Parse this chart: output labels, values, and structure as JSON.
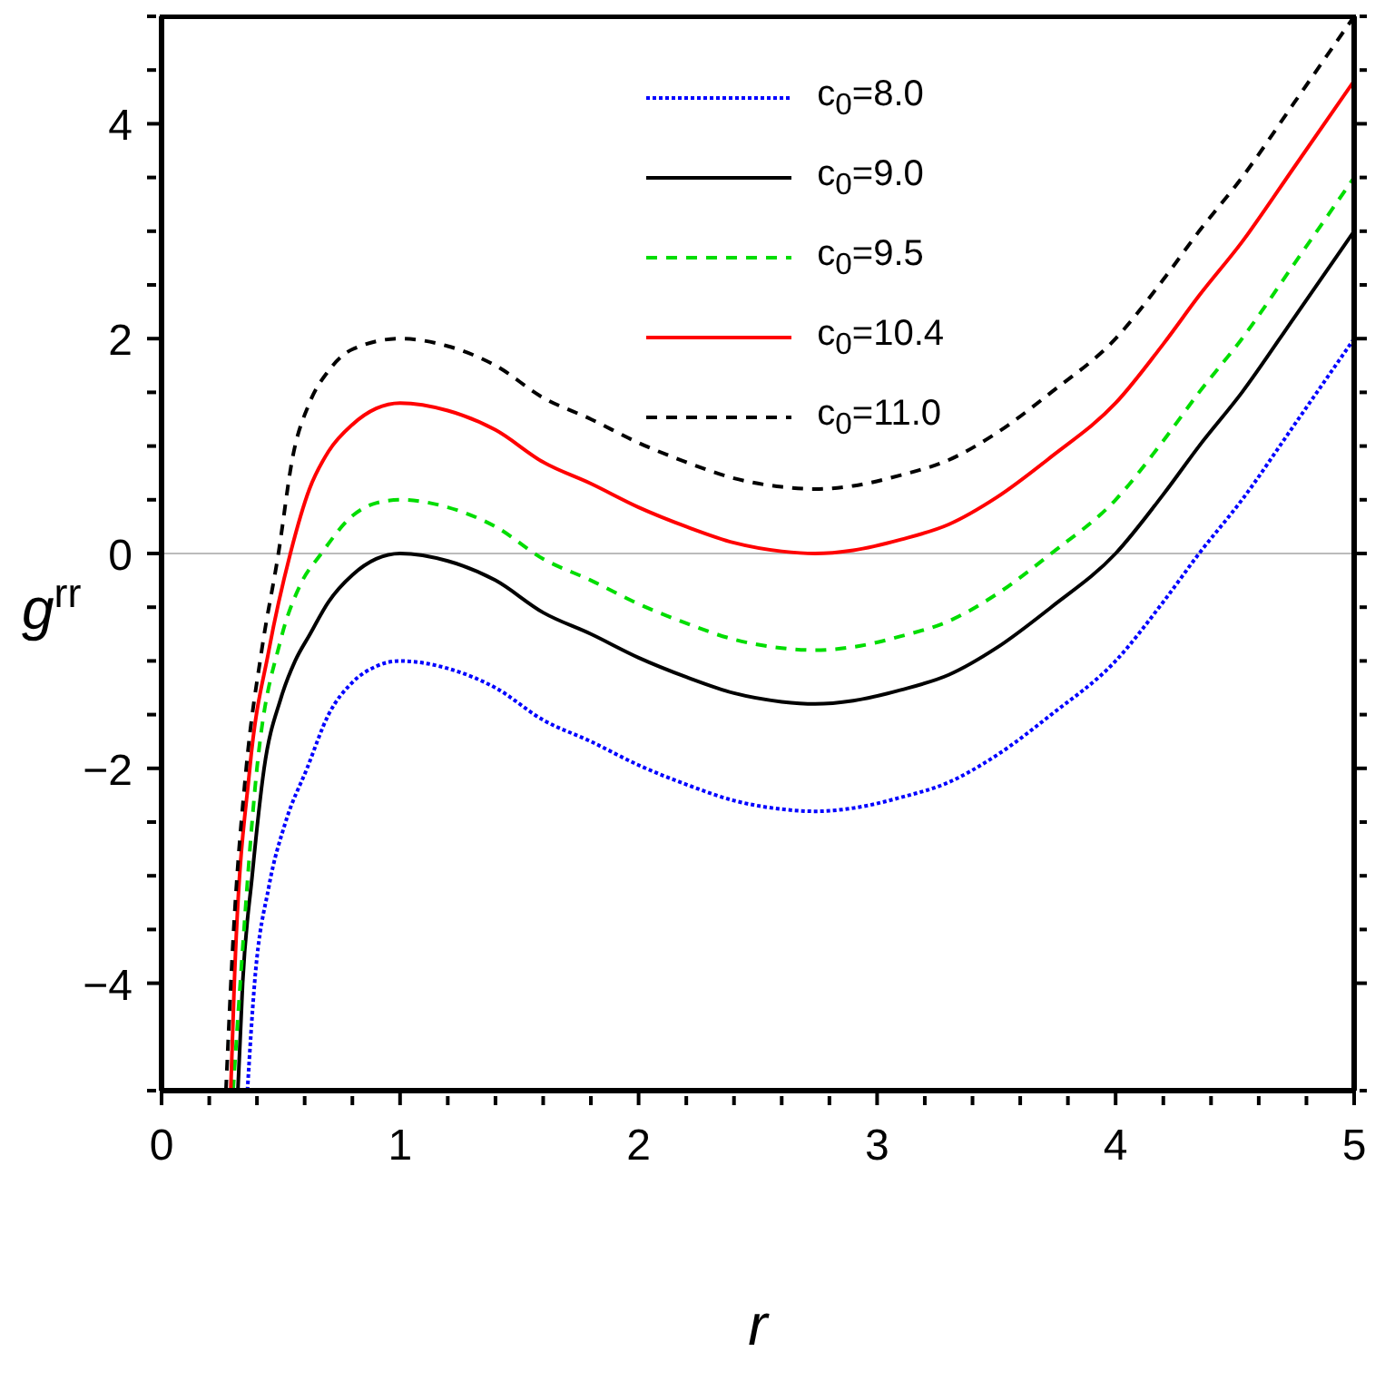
{
  "chart_data": {
    "type": "line",
    "xlabel": "r",
    "ylabel": "g$^{rr}$",
    "xlim": [
      0,
      5
    ],
    "ylim": [
      -5,
      5
    ],
    "xticks": [
      0,
      {
        "value": 0.2,
        "label": null
      },
      {
        "value": 0.4,
        "label": null
      },
      {
        "value": 0.6,
        "label": null
      },
      {
        "value": 0.8,
        "label": null
      },
      1,
      {
        "value": 1.2,
        "label": null
      },
      {
        "value": 1.4,
        "label": null
      },
      {
        "value": 1.6,
        "label": null
      },
      {
        "value": 1.8,
        "label": null
      },
      2,
      {
        "value": 2.2,
        "label": null
      },
      {
        "value": 2.4,
        "label": null
      },
      {
        "value": 2.6,
        "label": null
      },
      {
        "value": 2.8,
        "label": null
      },
      3,
      {
        "value": 3.2,
        "label": null
      },
      {
        "value": 3.4,
        "label": null
      },
      {
        "value": 3.6,
        "label": null
      },
      {
        "value": 3.8,
        "label": null
      },
      4,
      {
        "value": 4.2,
        "label": null
      },
      {
        "value": 4.4,
        "label": null
      },
      {
        "value": 4.6,
        "label": null
      },
      {
        "value": 4.8,
        "label": null
      },
      5
    ],
    "yticks": [
      {
        "value": -5,
        "label": null
      },
      -4,
      {
        "value": -3.5,
        "label": null
      },
      {
        "value": -3,
        "label": null
      },
      {
        "value": -2.5,
        "label": null
      },
      -2,
      {
        "value": -1.5,
        "label": null
      },
      {
        "value": -1,
        "label": null
      },
      {
        "value": -0.5,
        "label": null
      },
      0,
      {
        "value": 0.5,
        "label": null
      },
      {
        "value": 1,
        "label": null
      },
      {
        "value": 1.5,
        "label": null
      },
      2,
      {
        "value": 2.5,
        "label": null
      },
      {
        "value": 3,
        "label": null
      },
      {
        "value": 3.5,
        "label": null
      },
      4,
      {
        "value": 4.5,
        "label": null
      },
      {
        "value": 5,
        "label": null
      }
    ],
    "grid": false,
    "legend": "top right",
    "marker": "none",
    "ref_lines": [
      {
        "axis": "y",
        "value": 0,
        "color": "#bbbbbb"
      }
    ],
    "series": [
      {
        "name": "c$_{0}$=8.0",
        "color": "#0000ff",
        "line_style": "dotted",
        "x": [
          0.36,
          0.39,
          0.45,
          0.52,
          0.61,
          0.7,
          0.8,
          0.9,
          1.0,
          1.2,
          1.4,
          1.6,
          1.8,
          2.0,
          2.2,
          2.4,
          2.6,
          2.74,
          2.9,
          3.1,
          3.3,
          3.5,
          3.73,
          4.0,
          4.2,
          4.35,
          4.53,
          4.75,
          5.0
        ],
        "values": [
          -5,
          -4,
          -3.1,
          -2.5,
          -2,
          -1.5,
          -1.2,
          -1.05,
          -1,
          -1.07,
          -1.25,
          -1.55,
          -1.75,
          -1.97,
          -2.15,
          -2.3,
          -2.38,
          -2.4,
          -2.37,
          -2.27,
          -2.13,
          -1.88,
          -1.5,
          -1,
          -0.45,
          0,
          0.5,
          1.2,
          2
        ]
      },
      {
        "name": "c$_{0}$=9.0",
        "color": "#000000",
        "line_style": "solid",
        "x": [
          0.32,
          0.34,
          0.38,
          0.43,
          0.5,
          0.56,
          0.62,
          0.7,
          0.8,
          0.9,
          1.0,
          1.2,
          1.4,
          1.6,
          1.8,
          2.0,
          2.2,
          2.4,
          2.6,
          2.74,
          2.9,
          3.1,
          3.3,
          3.5,
          3.73,
          4.0,
          4.2,
          4.35,
          4.53,
          4.75,
          5.0
        ],
        "values": [
          -5,
          -4,
          -3,
          -2,
          -1.35,
          -1,
          -0.76,
          -0.45,
          -0.2,
          -0.05,
          0,
          -0.07,
          -0.25,
          -0.55,
          -0.75,
          -0.97,
          -1.15,
          -1.3,
          -1.38,
          -1.4,
          -1.37,
          -1.27,
          -1.13,
          -0.88,
          -0.5,
          0,
          0.55,
          1,
          1.5,
          2.2,
          3
        ]
      },
      {
        "name": "c$_{0}$=9.5",
        "color": "#00dd00",
        "line_style": "dashed",
        "x": [
          0.3,
          0.33,
          0.4,
          0.5,
          0.58,
          0.67,
          0.8,
          0.9,
          1.0,
          1.2,
          1.4,
          1.6,
          1.8,
          2.0,
          2.2,
          2.4,
          2.6,
          2.74,
          2.9,
          3.1,
          3.3,
          3.5,
          3.73,
          4.0,
          4.2,
          4.35,
          4.53,
          4.75,
          5.0
        ],
        "values": [
          -5,
          -4,
          -2,
          -0.8,
          -0.3,
          0,
          0.35,
          0.47,
          0.5,
          0.43,
          0.25,
          -0.05,
          -0.25,
          -0.47,
          -0.65,
          -0.8,
          -0.88,
          -0.9,
          -0.87,
          -0.77,
          -0.63,
          -0.38,
          0,
          0.5,
          1.05,
          1.5,
          2,
          2.7,
          3.5
        ]
      },
      {
        "name": "c$_{0}$=10.4",
        "color": "#ff0000",
        "line_style": "solid",
        "x": [
          0.29,
          0.305,
          0.37,
          0.45,
          0.54,
          0.62,
          0.7,
          0.8,
          0.9,
          1.0,
          1.2,
          1.4,
          1.6,
          1.8,
          2.0,
          2.2,
          2.4,
          2.6,
          2.74,
          2.9,
          3.1,
          3.3,
          3.5,
          3.73,
          4.0,
          4.2,
          4.35,
          4.53,
          4.75,
          5.0
        ],
        "values": [
          -5,
          -4,
          -2,
          -0.9,
          0,
          0.6,
          0.95,
          1.2,
          1.35,
          1.4,
          1.33,
          1.15,
          0.85,
          0.65,
          0.43,
          0.25,
          0.1,
          0.02,
          0,
          0.03,
          0.13,
          0.27,
          0.52,
          0.9,
          1.4,
          1.95,
          2.4,
          2.9,
          3.6,
          4.4
        ]
      },
      {
        "name": "c$_{0}$=11.0",
        "color": "#000000",
        "line_style": "dashed",
        "x": [
          0.27,
          0.3,
          0.355,
          0.42,
          0.49,
          0.55,
          0.62,
          0.7,
          0.8,
          1.0,
          1.2,
          1.4,
          1.6,
          1.8,
          2.0,
          2.2,
          2.4,
          2.6,
          2.74,
          2.9,
          3.1,
          3.3,
          3.5,
          3.73,
          4.0,
          4.2,
          4.35,
          4.53,
          4.75,
          5.0
        ],
        "values": [
          -5,
          -3.6,
          -2,
          -0.9,
          0,
          0.9,
          1.4,
          1.7,
          1.9,
          2,
          1.93,
          1.75,
          1.45,
          1.25,
          1.03,
          0.85,
          0.7,
          0.62,
          0.6,
          0.63,
          0.73,
          0.87,
          1.12,
          1.5,
          2,
          2.55,
          3,
          3.5,
          4.2,
          5
        ]
      }
    ]
  }
}
